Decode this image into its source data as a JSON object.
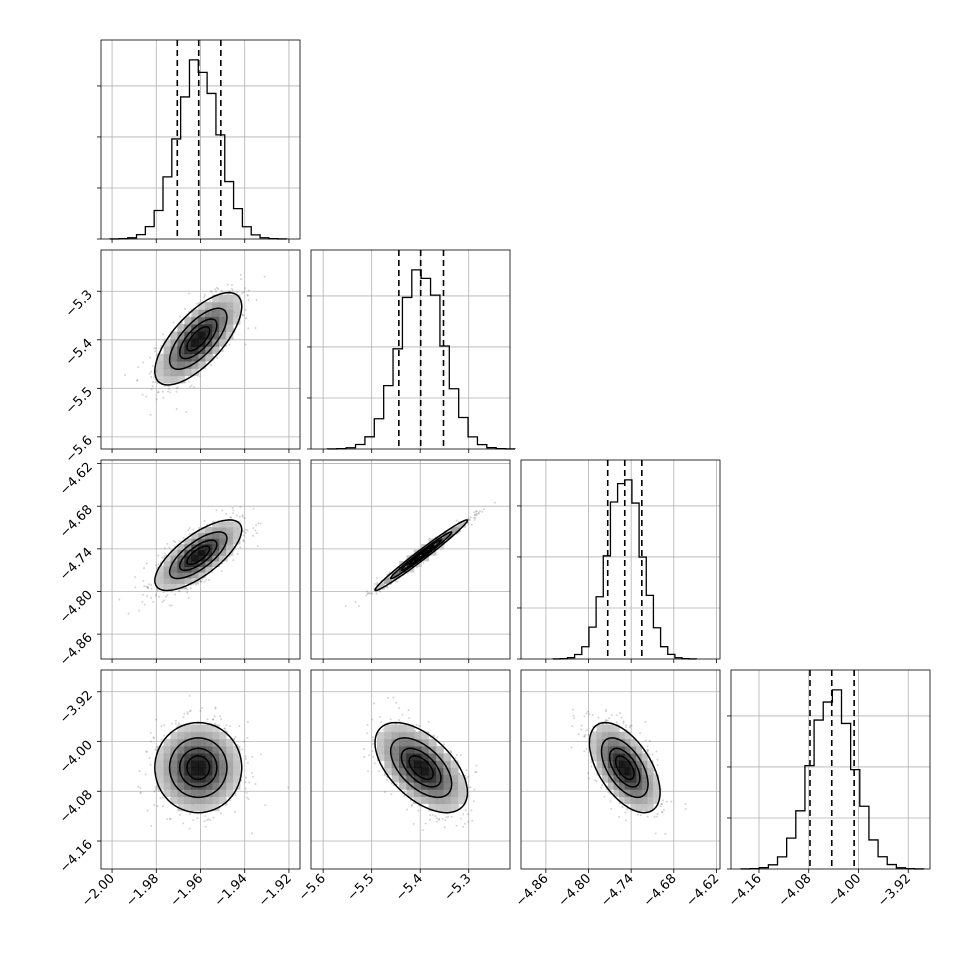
{
  "chart_data": {
    "type": "corner",
    "n_params": 4,
    "grid": true,
    "params": [
      {
        "range": [
          -2.005,
          -1.915
        ],
        "ticks": [
          "-2.00",
          "-1.98",
          "-1.96",
          "-1.94",
          "-1.92"
        ],
        "tick_values": [
          -2.0,
          -1.98,
          -1.96,
          -1.94,
          -1.92
        ],
        "mean": -1.961,
        "sigma": 0.0095,
        "quantiles": [
          -1.9705,
          -1.9608,
          -1.9508
        ]
      },
      {
        "range": [
          -5.625,
          -5.215
        ],
        "ticks": [
          "-5.6",
          "-5.5",
          "-5.4",
          "-5.3"
        ],
        "tick_values": [
          -5.6,
          -5.5,
          -5.4,
          -5.3
        ],
        "mean": -5.398,
        "sigma": 0.046,
        "quantiles": [
          -5.444,
          -5.399,
          -5.352
        ]
      },
      {
        "range": [
          -4.895,
          -4.615
        ],
        "ticks": [
          "-4.86",
          "-4.80",
          "-4.74",
          "-4.68",
          "-4.62"
        ],
        "tick_values": [
          -4.86,
          -4.8,
          -4.74,
          -4.68,
          -4.62
        ],
        "mean": -4.749,
        "sigma": 0.024,
        "quantiles": [
          -4.773,
          -4.749,
          -4.725
        ]
      },
      {
        "range": [
          -4.205,
          -3.885
        ],
        "ticks": [
          "-4.16",
          "-4.08",
          "-4.00",
          "-3.92"
        ],
        "tick_values": [
          -4.16,
          -4.08,
          -4.0,
          -3.92
        ],
        "mean": -4.042,
        "sigma": 0.035,
        "quantiles": [
          -4.078,
          -4.043,
          -4.007
        ]
      }
    ],
    "correlations": {
      "1-0": 0.7,
      "2-0": 0.72,
      "2-1": 0.985,
      "3-0": 0.0,
      "3-1": -0.55,
      "3-2": -0.55
    },
    "histogram_bins": 20,
    "contour_levels_sigma": [
      0.5,
      1.0,
      1.5,
      2.0
    ]
  },
  "colors": {
    "line": "#000000",
    "grid": "#b0b0b0",
    "points": "#555555"
  }
}
